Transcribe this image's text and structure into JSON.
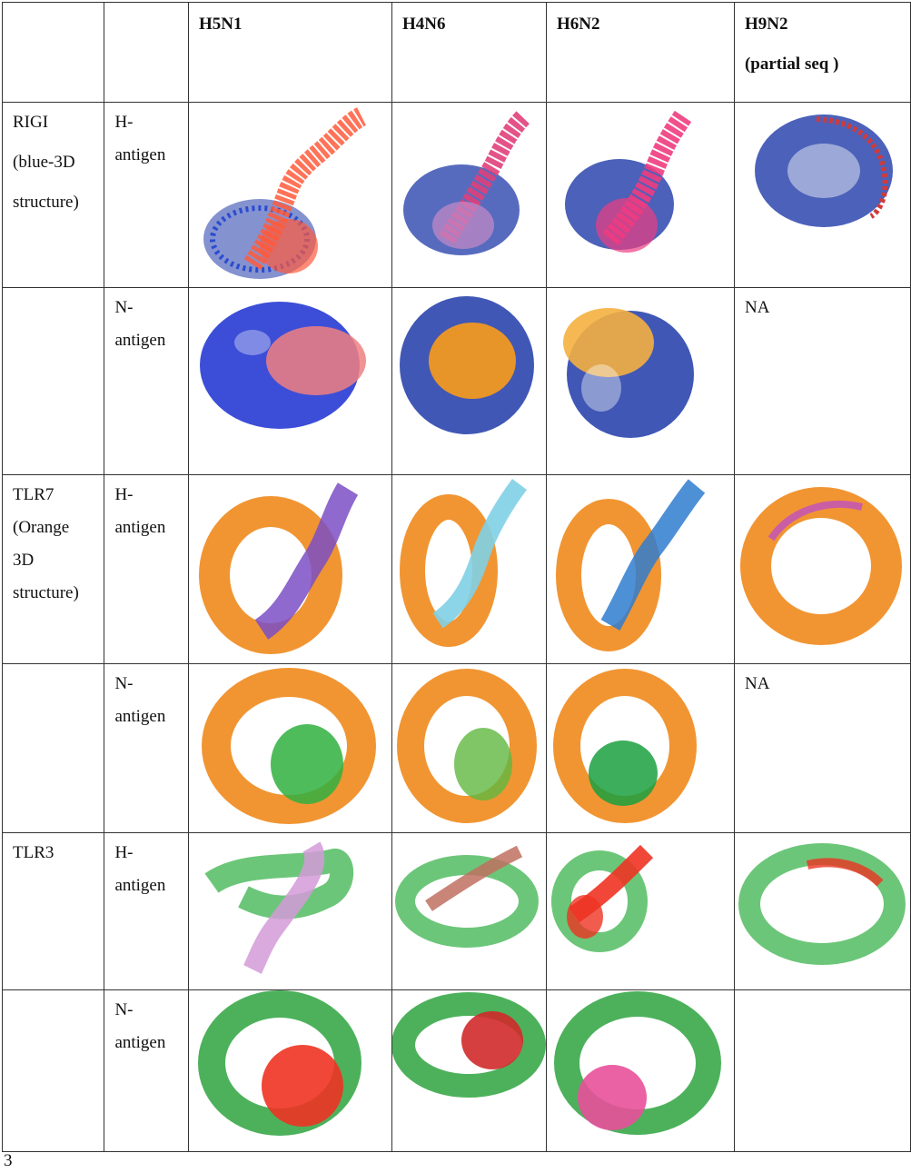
{
  "header": {
    "c0": "",
    "c1": "",
    "c2": "H5N1",
    "c3": "H4N6",
    "c4": "H6N2",
    "c5_line1": "H9N2",
    "c5_line2": "(partial seq )"
  },
  "rows": [
    {
      "receptor": [
        "RIGI",
        "(blue-3D",
        "structure)"
      ],
      "antigen": [
        "H-",
        "antigen"
      ],
      "h9n2": ""
    },
    {
      "receptor": [],
      "antigen": [
        "N-",
        "antigen"
      ],
      "h9n2": "NA"
    },
    {
      "receptor": [
        "TLR7",
        "(Orange",
        "3D",
        "structure)"
      ],
      "antigen": [
        "H-",
        "antigen"
      ],
      "h9n2": ""
    },
    {
      "receptor": [],
      "antigen": [
        "N-",
        "antigen"
      ],
      "h9n2": "NA"
    },
    {
      "receptor": [
        "TLR3"
      ],
      "antigen": [
        "H-",
        "antigen"
      ],
      "h9n2": ""
    },
    {
      "receptor": [],
      "antigen": [
        "N-",
        "antigen"
      ],
      "h9n2": ""
    }
  ],
  "colors": {
    "rigi_blue": "#1f3aa8",
    "tlr7_orange": "#f08a1c",
    "tlr3_green": "#5cc06a",
    "h5n1_rigi_h": "#ff5a3c",
    "h4n6_pink": "#e0407a",
    "nantigen_pink": "#f08080",
    "nantigen_orange": "#f59a1c",
    "tlr7_h5_purple": "#7b4fc4",
    "tlr7_h4_cyan": "#7fd0e6",
    "tlr7_h6_blue": "#2f7ccf",
    "tlr7_h9_magenta": "#c050c0",
    "tlr7_n_green": "#30b040",
    "tlr3_h5_lilac": "#d49ad8",
    "tlr3_h4_brown": "#c07060",
    "tlr3_red": "#ee3322",
    "tlr3_pink": "#e8509a"
  },
  "footnote": "3"
}
